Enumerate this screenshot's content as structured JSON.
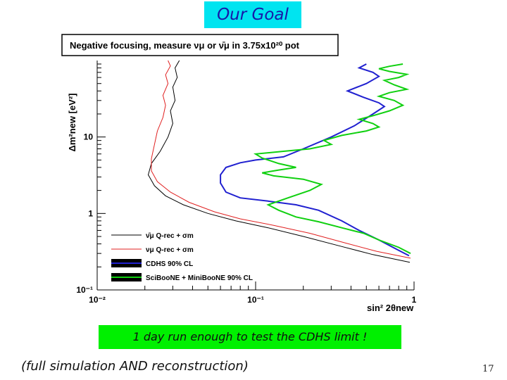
{
  "slide": {
    "title": "Our Goal",
    "callout": "1 day run enough to test the CDHS limit !",
    "caption": "(full simulation AND reconstruction)",
    "page_number": "17"
  },
  "chart_data": {
    "type": "line",
    "title": "Negative focusing, measure νμ or ν̄μ in 3.75x10²⁰ pot",
    "xlabel": "sin² 2θnew",
    "ylabel": "Δm²new [eV²]",
    "xscale": "log",
    "yscale": "log",
    "xlim": [
      0.01,
      1
    ],
    "ylim": [
      0.1,
      100
    ],
    "x_ticks": [
      "10⁻²",
      "10⁻¹",
      "1"
    ],
    "y_ticks": [
      "10⁻¹",
      "1",
      "10"
    ],
    "legend_position": "bottom-left",
    "series": [
      {
        "name": "ν̄μ Q-rec + σm",
        "color": "#000000",
        "points": [
          [
            0.94,
            0.23
          ],
          [
            0.55,
            0.29
          ],
          [
            0.35,
            0.37
          ],
          [
            0.2,
            0.5
          ],
          [
            0.12,
            0.65
          ],
          [
            0.075,
            0.8
          ],
          [
            0.05,
            1.0
          ],
          [
            0.035,
            1.3
          ],
          [
            0.027,
            1.7
          ],
          [
            0.023,
            2.3
          ],
          [
            0.021,
            3.2
          ],
          [
            0.022,
            4.5
          ],
          [
            0.025,
            6.5
          ],
          [
            0.028,
            10
          ],
          [
            0.03,
            15
          ],
          [
            0.029,
            22
          ],
          [
            0.031,
            30
          ],
          [
            0.03,
            45
          ],
          [
            0.032,
            60
          ],
          [
            0.031,
            80
          ],
          [
            0.033,
            100
          ]
        ]
      },
      {
        "name": "νμ Q-rec + σm",
        "color": "#e02020",
        "points": [
          [
            0.95,
            0.26
          ],
          [
            0.58,
            0.32
          ],
          [
            0.37,
            0.41
          ],
          [
            0.22,
            0.55
          ],
          [
            0.13,
            0.7
          ],
          [
            0.08,
            0.85
          ],
          [
            0.055,
            1.05
          ],
          [
            0.038,
            1.4
          ],
          [
            0.029,
            1.9
          ],
          [
            0.024,
            2.6
          ],
          [
            0.022,
            3.6
          ],
          [
            0.022,
            5.2
          ],
          [
            0.023,
            8
          ],
          [
            0.024,
            12
          ],
          [
            0.026,
            18
          ],
          [
            0.027,
            26
          ],
          [
            0.026,
            35
          ],
          [
            0.028,
            50
          ],
          [
            0.027,
            65
          ],
          [
            0.029,
            85
          ],
          [
            0.028,
            100
          ]
        ]
      },
      {
        "name": "CDHS 90% CL",
        "color": "#2020d0",
        "points": [
          [
            0.93,
            0.28
          ],
          [
            0.8,
            0.33
          ],
          [
            0.6,
            0.45
          ],
          [
            0.45,
            0.6
          ],
          [
            0.35,
            0.8
          ],
          [
            0.25,
            1.1
          ],
          [
            0.18,
            1.3
          ],
          [
            0.12,
            1.45
          ],
          [
            0.08,
            1.6
          ],
          [
            0.065,
            1.9
          ],
          [
            0.06,
            2.5
          ],
          [
            0.06,
            3.2
          ],
          [
            0.065,
            4.0
          ],
          [
            0.08,
            4.6
          ],
          [
            0.1,
            5.0
          ],
          [
            0.15,
            5.5
          ],
          [
            0.2,
            7
          ],
          [
            0.3,
            10
          ],
          [
            0.42,
            14
          ],
          [
            0.55,
            20
          ],
          [
            0.65,
            25
          ],
          [
            0.6,
            28
          ],
          [
            0.48,
            33
          ],
          [
            0.38,
            40
          ],
          [
            0.5,
            50
          ],
          [
            0.6,
            62
          ],
          [
            0.55,
            70
          ],
          [
            0.45,
            80
          ],
          [
            0.5,
            90
          ]
        ]
      },
      {
        "name": "SciBooNE + MiniBooNE 90% CL",
        "color": "#10d010",
        "points": [
          [
            0.95,
            0.3
          ],
          [
            0.8,
            0.36
          ],
          [
            0.6,
            0.45
          ],
          [
            0.48,
            0.55
          ],
          [
            0.35,
            0.65
          ],
          [
            0.25,
            0.78
          ],
          [
            0.18,
            0.9
          ],
          [
            0.14,
            1.1
          ],
          [
            0.12,
            1.3
          ],
          [
            0.16,
            1.6
          ],
          [
            0.22,
            2.0
          ],
          [
            0.26,
            2.4
          ],
          [
            0.2,
            2.8
          ],
          [
            0.13,
            3.1
          ],
          [
            0.11,
            3.4
          ],
          [
            0.14,
            3.7
          ],
          [
            0.18,
            4.0
          ],
          [
            0.14,
            4.5
          ],
          [
            0.11,
            5.3
          ],
          [
            0.1,
            6.0
          ],
          [
            0.15,
            6.5
          ],
          [
            0.22,
            7.0
          ],
          [
            0.3,
            8.0
          ],
          [
            0.27,
            9.0
          ],
          [
            0.35,
            10.5
          ],
          [
            0.5,
            12
          ],
          [
            0.6,
            13.5
          ],
          [
            0.55,
            15
          ],
          [
            0.45,
            17
          ],
          [
            0.55,
            19
          ],
          [
            0.7,
            22
          ],
          [
            0.85,
            26
          ],
          [
            0.75,
            30
          ],
          [
            0.6,
            34
          ],
          [
            0.7,
            38
          ],
          [
            0.9,
            42
          ],
          [
            0.75,
            48
          ],
          [
            0.65,
            55
          ],
          [
            0.8,
            60
          ],
          [
            0.9,
            66
          ],
          [
            0.7,
            72
          ],
          [
            0.6,
            78
          ],
          [
            0.7,
            84
          ],
          [
            0.85,
            90
          ]
        ]
      }
    ]
  }
}
